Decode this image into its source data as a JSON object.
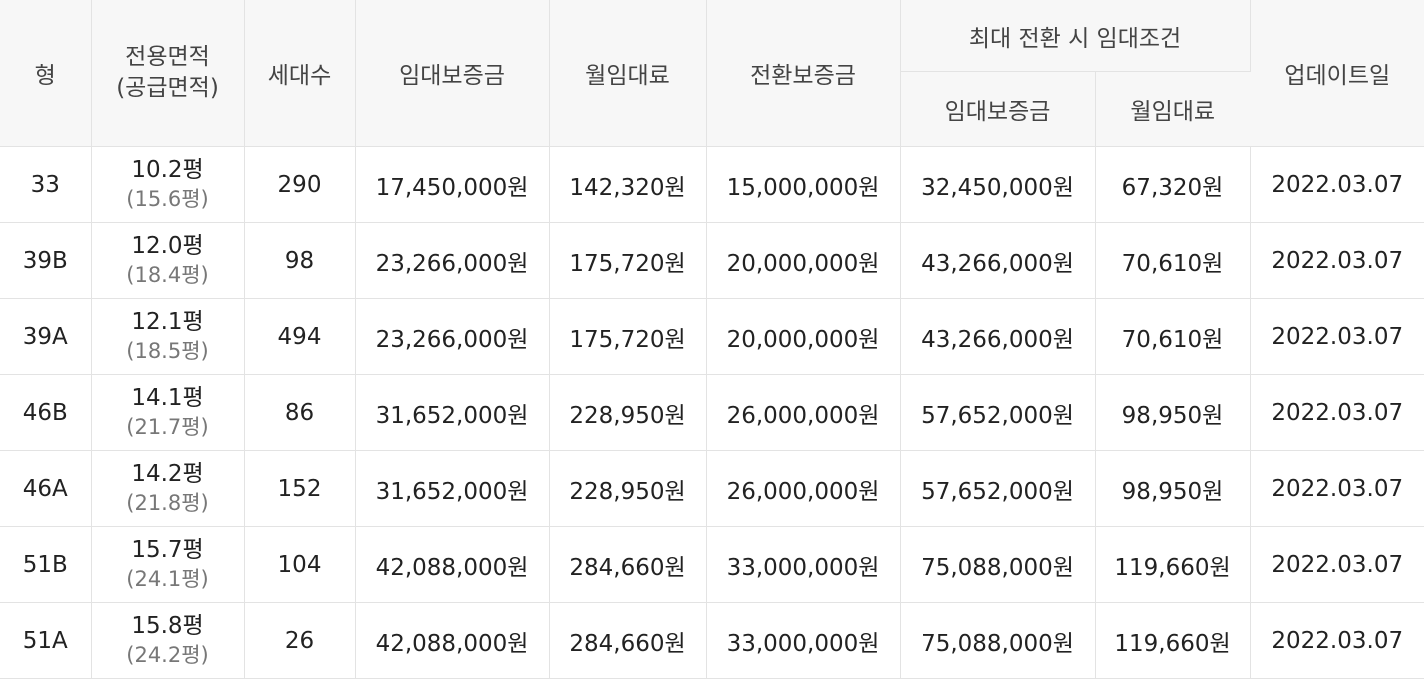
{
  "header": {
    "type": "형",
    "area_line1": "전용면적",
    "area_line2": "(공급면적)",
    "households": "세대수",
    "deposit": "임대보증금",
    "monthly_rent": "월임대료",
    "conversion_deposit": "전환보증금",
    "max_conversion_group": "최대 전환 시 임대조건",
    "max_deposit": "임대보증금",
    "max_monthly_rent": "월임대료",
    "updated": "업데이트일"
  },
  "rows": [
    {
      "type": "33",
      "area": "10.2평",
      "supply_area": "(15.6평)",
      "households": "290",
      "deposit": "17,450,000원",
      "monthly_rent": "142,320원",
      "conversion_deposit": "15,000,000원",
      "max_deposit": "32,450,000원",
      "max_monthly_rent": "67,320원",
      "updated": "2022.03.07"
    },
    {
      "type": "39B",
      "area": "12.0평",
      "supply_area": "(18.4평)",
      "households": "98",
      "deposit": "23,266,000원",
      "monthly_rent": "175,720원",
      "conversion_deposit": "20,000,000원",
      "max_deposit": "43,266,000원",
      "max_monthly_rent": "70,610원",
      "updated": "2022.03.07"
    },
    {
      "type": "39A",
      "area": "12.1평",
      "supply_area": "(18.5평)",
      "households": "494",
      "deposit": "23,266,000원",
      "monthly_rent": "175,720원",
      "conversion_deposit": "20,000,000원",
      "max_deposit": "43,266,000원",
      "max_monthly_rent": "70,610원",
      "updated": "2022.03.07"
    },
    {
      "type": "46B",
      "area": "14.1평",
      "supply_area": "(21.7평)",
      "households": "86",
      "deposit": "31,652,000원",
      "monthly_rent": "228,950원",
      "conversion_deposit": "26,000,000원",
      "max_deposit": "57,652,000원",
      "max_monthly_rent": "98,950원",
      "updated": "2022.03.07"
    },
    {
      "type": "46A",
      "area": "14.2평",
      "supply_area": "(21.8평)",
      "households": "152",
      "deposit": "31,652,000원",
      "monthly_rent": "228,950원",
      "conversion_deposit": "26,000,000원",
      "max_deposit": "57,652,000원",
      "max_monthly_rent": "98,950원",
      "updated": "2022.03.07"
    },
    {
      "type": "51B",
      "area": "15.7평",
      "supply_area": "(24.1평)",
      "households": "104",
      "deposit": "42,088,000원",
      "monthly_rent": "284,660원",
      "conversion_deposit": "33,000,000원",
      "max_deposit": "75,088,000원",
      "max_monthly_rent": "119,660원",
      "updated": "2022.03.07"
    },
    {
      "type": "51A",
      "area": "15.8평",
      "supply_area": "(24.2평)",
      "households": "26",
      "deposit": "42,088,000원",
      "monthly_rent": "284,660원",
      "conversion_deposit": "33,000,000원",
      "max_deposit": "75,088,000원",
      "max_monthly_rent": "119,660원",
      "updated": "2022.03.07"
    }
  ]
}
